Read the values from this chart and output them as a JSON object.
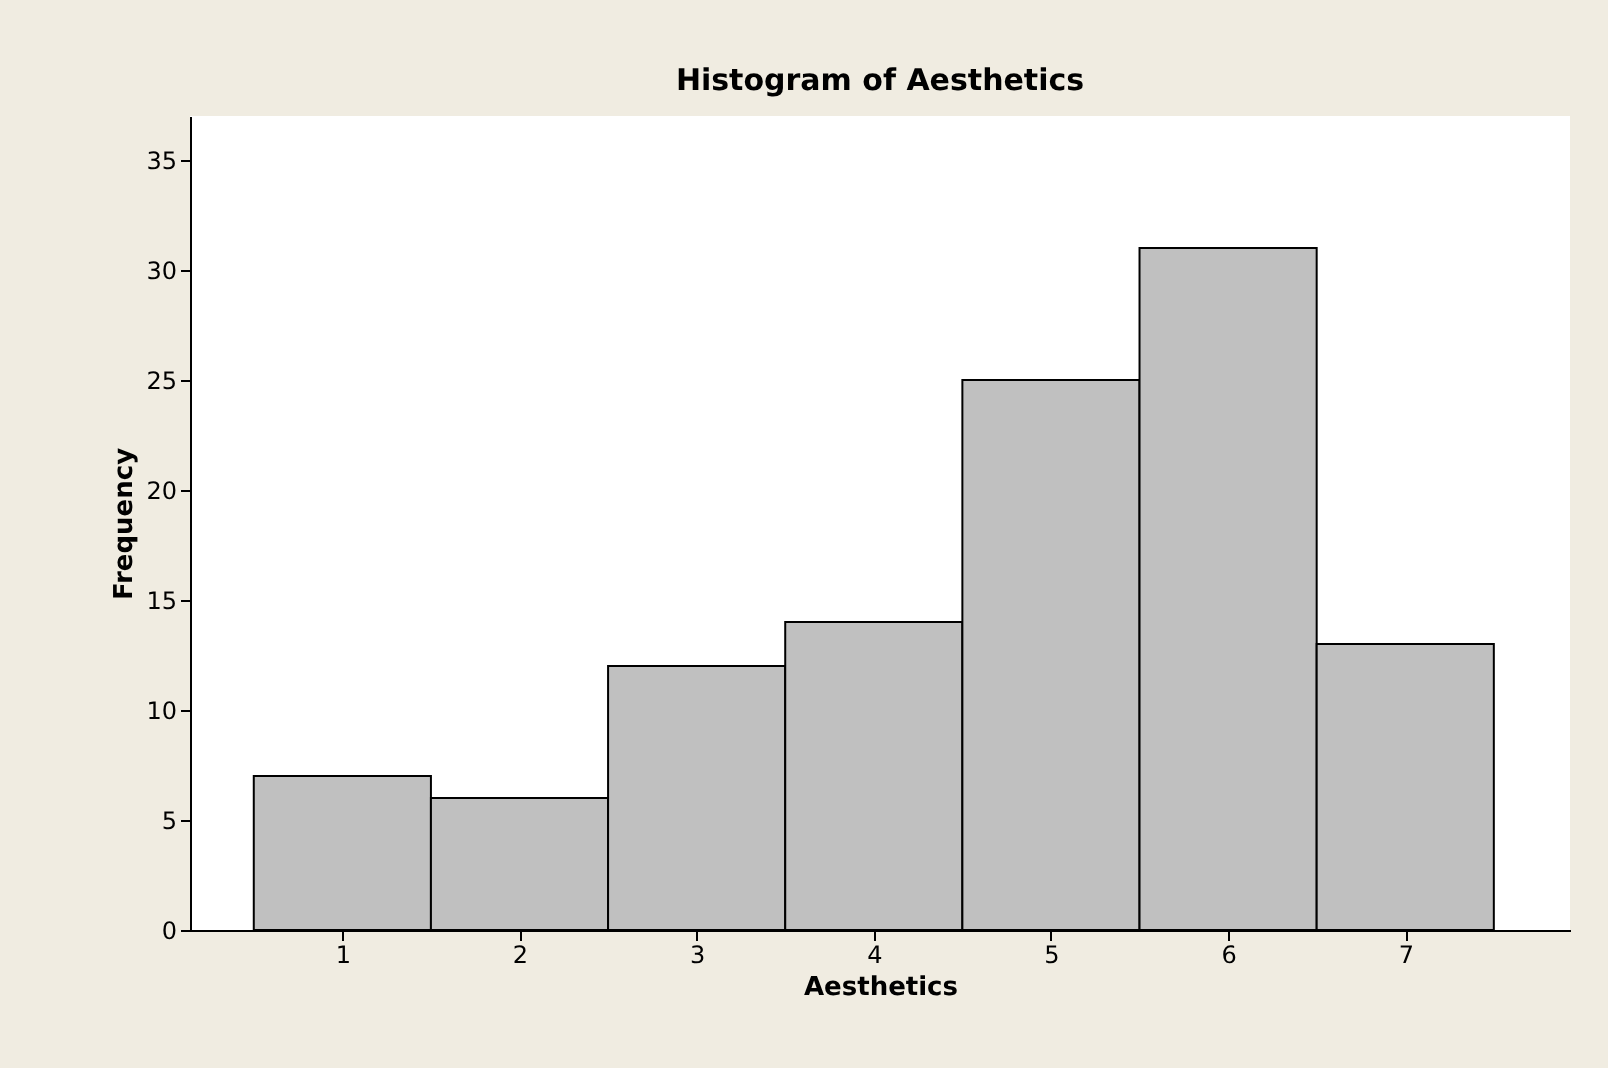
{
  "chart_data": {
    "type": "histogram",
    "title": "Histogram of Aesthetics",
    "xlabel": "Aesthetics",
    "ylabel": "Frequency",
    "bins": [
      0.5,
      1.5,
      2.5,
      3.5,
      4.5,
      5.5,
      6.5,
      7.5
    ],
    "values": [
      7,
      6,
      12,
      14,
      25,
      31,
      13
    ],
    "color": "#c0c0c0",
    "xlim": [
      0.14,
      7.93
    ],
    "xticks": [
      1,
      2,
      3,
      4,
      5,
      6,
      7
    ],
    "ylim": [
      0,
      37
    ],
    "yticks": [
      0,
      5,
      10,
      15,
      20,
      25,
      30,
      35
    ],
    "grid": false
  }
}
